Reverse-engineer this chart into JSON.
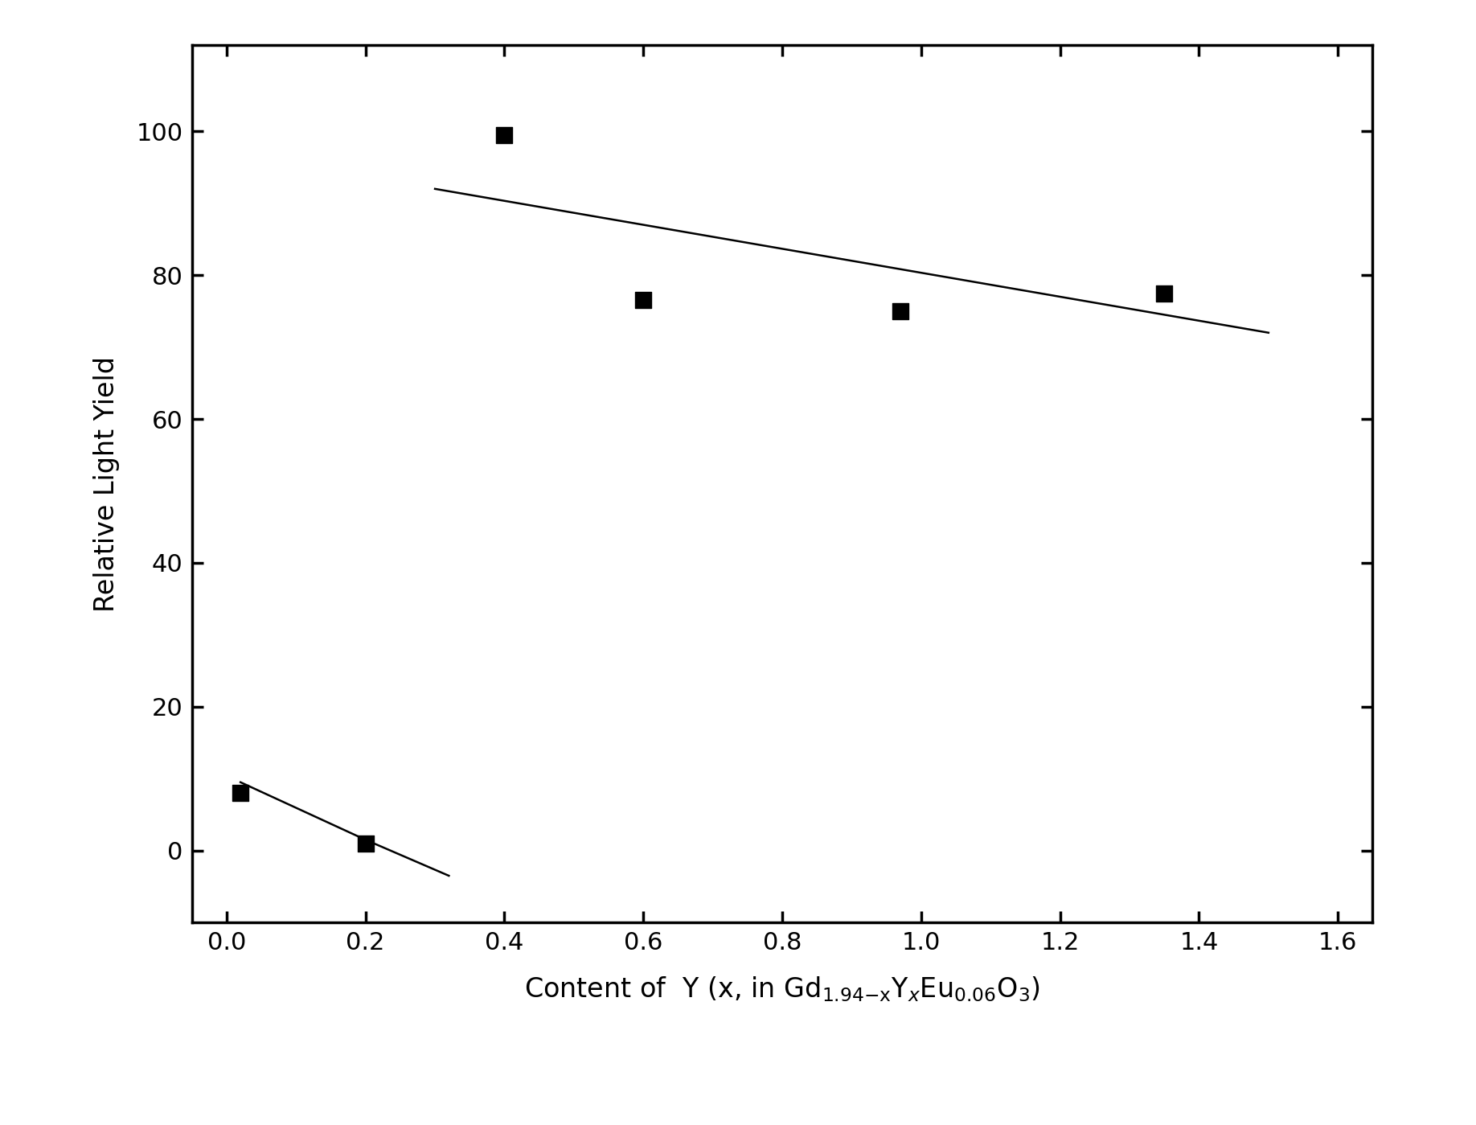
{
  "scatter_x": [
    0.02,
    0.2,
    0.4,
    0.6,
    0.97,
    1.35
  ],
  "scatter_y": [
    8,
    1,
    99.5,
    76.5,
    75,
    77.5
  ],
  "line1_x": [
    0.02,
    0.2,
    0.32
  ],
  "line1_y": [
    9.5,
    1.5,
    -3.5
  ],
  "line2_x": [
    0.3,
    1.5
  ],
  "line2_y": [
    92,
    72
  ],
  "ylabel": "Relative Light Yield",
  "xlim": [
    -0.05,
    1.65
  ],
  "ylim": [
    -10,
    112
  ],
  "yticks": [
    0,
    20,
    40,
    60,
    80,
    100
  ],
  "xticks": [
    0.0,
    0.2,
    0.4,
    0.6,
    0.8,
    1.0,
    1.2,
    1.4,
    1.6
  ],
  "marker_color": "#000000",
  "line_color": "#000000",
  "background_color": "#ffffff"
}
